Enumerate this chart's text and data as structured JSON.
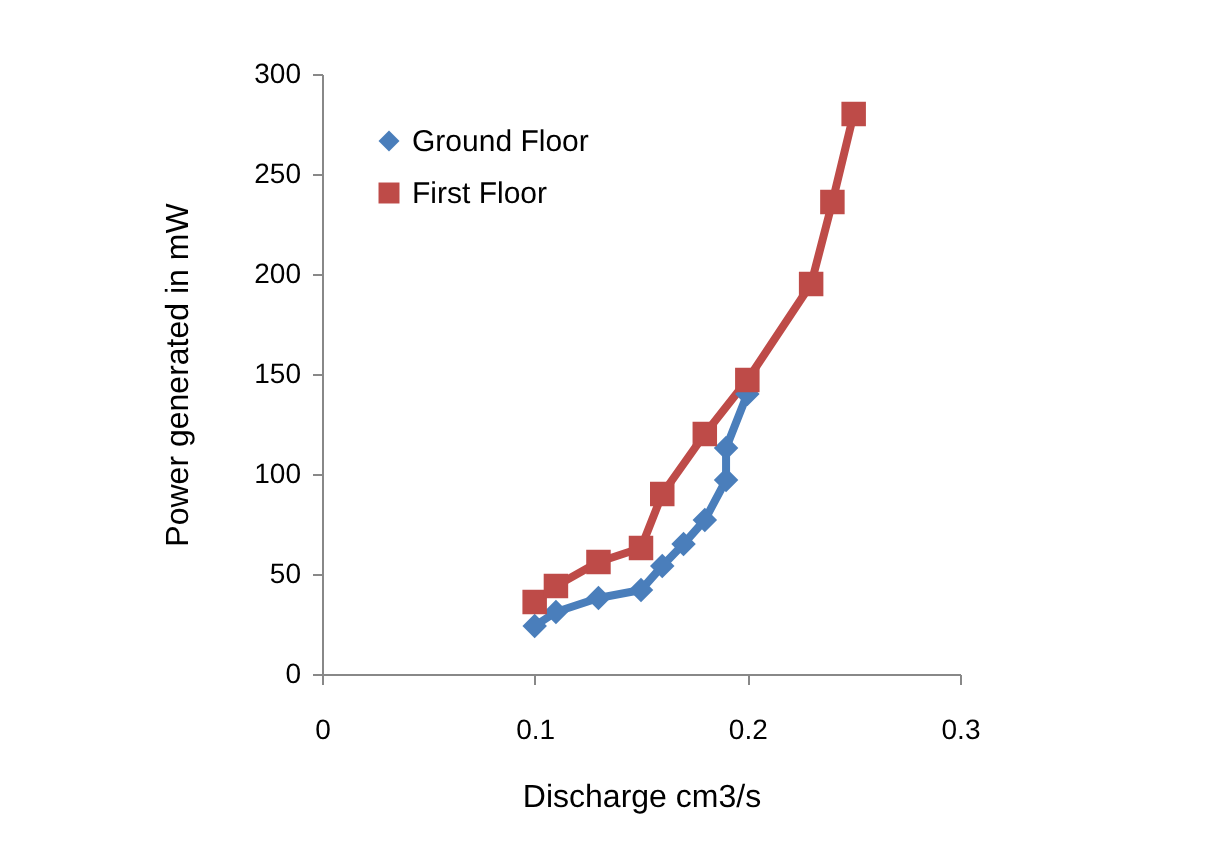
{
  "chart_data": {
    "type": "line",
    "xlabel": "Discharge cm3/s",
    "ylabel": "Power generated in mW",
    "xlim": [
      0,
      0.3
    ],
    "xticks": [
      0,
      0.1,
      0.2,
      0.3
    ],
    "ylim": [
      0,
      300
    ],
    "yticks": [
      0,
      50,
      100,
      150,
      200,
      250,
      300
    ],
    "grid": false,
    "legend": "top left",
    "line_style": "solid",
    "series": [
      {
        "name": "Ground Floor",
        "color": "#4a7ebb",
        "marker": "diamond",
        "x": [
          0.1,
          0.11,
          0.13,
          0.15,
          0.16,
          0.17,
          0.18,
          0.19,
          0.19,
          0.2
        ],
        "values": [
          24,
          31,
          38,
          42,
          54,
          65,
          77,
          97,
          113,
          140
        ]
      },
      {
        "name": "First Floor",
        "color": "#be4b48",
        "marker": "square",
        "x": [
          0.1,
          0.11,
          0.13,
          0.15,
          0.16,
          0.18,
          0.2,
          0.23,
          0.24,
          0.25
        ],
        "values": [
          36,
          44,
          56,
          63,
          90,
          120,
          147,
          195,
          236,
          280
        ]
      }
    ]
  }
}
